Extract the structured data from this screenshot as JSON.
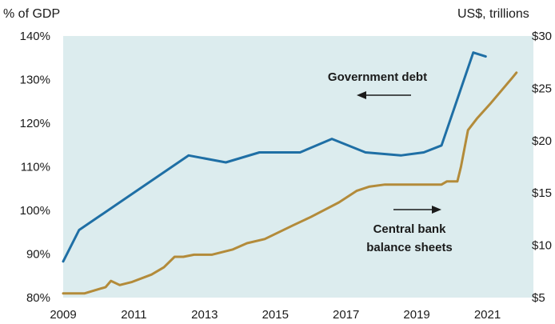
{
  "chart_data": {
    "type": "line",
    "title": "",
    "xlabel": "",
    "ylabel_left": "% of GDP",
    "ylabel_right": "US$, trillions",
    "x_ticks": [
      "2009",
      "2011",
      "2013",
      "2015",
      "2017",
      "2019",
      "2021"
    ],
    "xlim": [
      2009,
      2022.3
    ],
    "ylim_left": [
      80,
      140
    ],
    "ylim_right": [
      5,
      30
    ],
    "y_ticks_left": [
      "80%",
      "90%",
      "100%",
      "110%",
      "120%",
      "130%",
      "140%"
    ],
    "y_ticks_right": [
      "$5",
      "$10",
      "$15",
      "$20",
      "$25",
      "$30"
    ],
    "grid": false,
    "background_color": "#dcecee",
    "series": [
      {
        "name": "Government debt",
        "axis": "left",
        "color": "#1f6fa5",
        "points": [
          [
            2009.0,
            88.3
          ],
          [
            2009.45,
            95.5
          ],
          [
            2012.55,
            112.6
          ],
          [
            2013.6,
            111.0
          ],
          [
            2014.55,
            113.3
          ],
          [
            2015.7,
            113.3
          ],
          [
            2016.6,
            116.4
          ],
          [
            2017.55,
            113.3
          ],
          [
            2018.55,
            112.6
          ],
          [
            2019.2,
            113.3
          ],
          [
            2019.7,
            114.9
          ],
          [
            2020.6,
            136.2
          ],
          [
            2020.95,
            135.3
          ]
        ]
      },
      {
        "name": "Central bank balance sheets",
        "axis": "right",
        "color": "#b38b3a",
        "points": [
          [
            2009.0,
            5.4
          ],
          [
            2009.6,
            5.4
          ],
          [
            2009.9,
            5.7
          ],
          [
            2010.2,
            6.0
          ],
          [
            2010.35,
            6.6
          ],
          [
            2010.6,
            6.2
          ],
          [
            2010.95,
            6.5
          ],
          [
            2011.5,
            7.2
          ],
          [
            2011.85,
            7.9
          ],
          [
            2012.15,
            8.9
          ],
          [
            2012.4,
            8.9
          ],
          [
            2012.7,
            9.1
          ],
          [
            2013.2,
            9.1
          ],
          [
            2013.8,
            9.6
          ],
          [
            2014.2,
            10.2
          ],
          [
            2014.7,
            10.6
          ],
          [
            2015.5,
            11.9
          ],
          [
            2016.0,
            12.7
          ],
          [
            2016.8,
            14.1
          ],
          [
            2017.3,
            15.2
          ],
          [
            2017.65,
            15.6
          ],
          [
            2018.1,
            15.8
          ],
          [
            2018.5,
            15.8
          ],
          [
            2019.0,
            15.8
          ],
          [
            2019.7,
            15.8
          ],
          [
            2019.85,
            16.1
          ],
          [
            2020.15,
            16.1
          ],
          [
            2020.25,
            17.5
          ],
          [
            2020.45,
            21.0
          ],
          [
            2020.7,
            22.1
          ],
          [
            2021.1,
            23.6
          ],
          [
            2021.5,
            25.2
          ],
          [
            2021.7,
            26.0
          ],
          [
            2021.82,
            26.5
          ]
        ]
      }
    ],
    "annotations": [
      {
        "lines": [
          "Government debt"
        ],
        "arrow": "left"
      },
      {
        "lines": [
          "Central bank",
          "balance sheets"
        ],
        "arrow": "right"
      }
    ]
  }
}
